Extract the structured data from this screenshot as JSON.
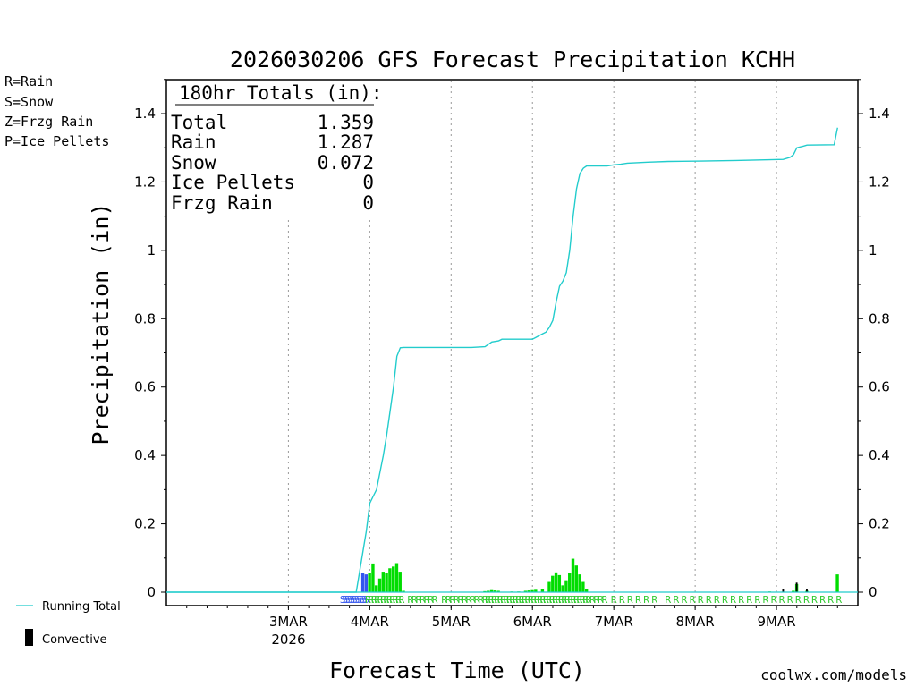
{
  "chart_data": {
    "type": "bar",
    "title": "2026030206 GFS Forecast Precipitation KCHH",
    "ylabel": "Precipitation (in)",
    "xlabel": "Forecast Time (UTC)",
    "ylim": [
      0,
      1.5
    ],
    "yticks": [
      "0",
      "0.2",
      "0.4",
      "0.6",
      "0.8",
      "1",
      "1.2",
      "1.4"
    ],
    "ytick_values": [
      0,
      0.2,
      0.4,
      0.6,
      0.8,
      1.0,
      1.2,
      1.4
    ],
    "xlim_hours": [
      -18,
      186
    ],
    "xticks": [
      {
        "label": "3MAR",
        "sub": "2026",
        "hour": 18
      },
      {
        "label": "4MAR",
        "sub": "",
        "hour": 42
      },
      {
        "label": "5MAR",
        "sub": "",
        "hour": 66
      },
      {
        "label": "6MAR",
        "sub": "",
        "hour": 90
      },
      {
        "label": "7MAR",
        "sub": "",
        "hour": 114
      },
      {
        "label": "8MAR",
        "sub": "",
        "hour": 138
      },
      {
        "label": "9MAR",
        "sub": "",
        "hour": 162
      }
    ],
    "legend": [
      {
        "label": "R=Rain",
        "color": "#33cc33"
      },
      {
        "label": "S=Snow",
        "color": "#3355ee"
      },
      {
        "label": "Z=Frzg Rain",
        "color": "#ee8833"
      },
      {
        "label": "P=Ice Pellets",
        "color": "#ee1188"
      }
    ],
    "totals": {
      "header": "180hr Totals (in):",
      "rows": [
        {
          "label": "Total",
          "value": "1.359"
        },
        {
          "label": "Rain",
          "value": "1.287"
        },
        {
          "label": "Snow",
          "value": "0.072"
        },
        {
          "label": "Ice Pellets",
          "value": "0"
        },
        {
          "label": "Frzg Rain",
          "value": "0"
        }
      ]
    },
    "running_total_label": "Running Total",
    "convective_label": "Convective",
    "credit": "coolwx.com/models",
    "colors": {
      "rain": "#00dd00",
      "snow": "#3355ee",
      "running": "#22cccc",
      "convective": "#000000",
      "rain_text": "#33cc33",
      "snow_text": "#3355ee"
    },
    "series": [
      {
        "name": "Snow",
        "bar_width_hours": 1,
        "bars": [
          [
            40,
            0.055
          ],
          [
            41,
            0.052
          ]
        ]
      },
      {
        "name": "Rain",
        "bar_width_hours": 1,
        "bars": [
          [
            42,
            0.055
          ],
          [
            43,
            0.084
          ],
          [
            44,
            0.02
          ],
          [
            45,
            0.04
          ],
          [
            46,
            0.06
          ],
          [
            47,
            0.055
          ],
          [
            48,
            0.07
          ],
          [
            49,
            0.075
          ],
          [
            50,
            0.085
          ],
          [
            51,
            0.06
          ],
          [
            52,
            0.004
          ],
          [
            76,
            0.003
          ],
          [
            77,
            0.004
          ],
          [
            78,
            0.006
          ],
          [
            79,
            0.005
          ],
          [
            80,
            0.004
          ],
          [
            84,
            0.002
          ],
          [
            86,
            0.002
          ],
          [
            88,
            0.004
          ],
          [
            89,
            0.005
          ],
          [
            90,
            0.006
          ],
          [
            91,
            0.007
          ],
          [
            93,
            0.01
          ],
          [
            95,
            0.03
          ],
          [
            96,
            0.048
          ],
          [
            97,
            0.058
          ],
          [
            98,
            0.05
          ],
          [
            99,
            0.02
          ],
          [
            100,
            0.035
          ],
          [
            101,
            0.055
          ],
          [
            102,
            0.098
          ],
          [
            103,
            0.078
          ],
          [
            104,
            0.052
          ],
          [
            105,
            0.03
          ],
          [
            106,
            0.008
          ],
          [
            120,
            0.001
          ],
          [
            138,
            0.001
          ],
          [
            160,
            0.002
          ],
          [
            167,
            0.004
          ],
          [
            168,
            0.024
          ],
          [
            171,
            0.004
          ],
          [
            180,
            0.052
          ]
        ]
      },
      {
        "name": "Convective",
        "bar_width_hours": 0.6,
        "bars": [
          [
            164,
            0.008
          ],
          [
            168,
            0.028
          ],
          [
            171,
            0.008
          ]
        ]
      },
      {
        "name": "Running Total",
        "points": [
          [
            -18,
            0
          ],
          [
            38,
            0
          ],
          [
            39,
            0.06
          ],
          [
            40,
            0.12
          ],
          [
            41,
            0.18
          ],
          [
            42,
            0.26
          ],
          [
            43,
            0.28
          ],
          [
            44,
            0.3
          ],
          [
            45,
            0.35
          ],
          [
            46,
            0.4
          ],
          [
            47,
            0.46
          ],
          [
            48,
            0.53
          ],
          [
            49,
            0.6
          ],
          [
            50,
            0.69
          ],
          [
            51,
            0.715
          ],
          [
            52,
            0.716
          ],
          [
            72,
            0.716
          ],
          [
            76,
            0.718
          ],
          [
            78,
            0.732
          ],
          [
            80,
            0.735
          ],
          [
            81,
            0.74
          ],
          [
            90,
            0.74
          ],
          [
            91,
            0.745
          ],
          [
            93,
            0.756
          ],
          [
            94,
            0.761
          ],
          [
            95,
            0.775
          ],
          [
            96,
            0.795
          ],
          [
            97,
            0.85
          ],
          [
            98,
            0.895
          ],
          [
            99,
            0.91
          ],
          [
            100,
            0.935
          ],
          [
            101,
            1.0
          ],
          [
            102,
            1.1
          ],
          [
            103,
            1.18
          ],
          [
            104,
            1.225
          ],
          [
            105,
            1.24
          ],
          [
            106,
            1.247
          ],
          [
            112,
            1.247
          ],
          [
            114,
            1.25
          ],
          [
            116,
            1.252
          ],
          [
            118,
            1.255
          ],
          [
            124,
            1.258
          ],
          [
            130,
            1.26
          ],
          [
            140,
            1.261
          ],
          [
            150,
            1.263
          ],
          [
            160,
            1.265
          ],
          [
            164,
            1.266
          ],
          [
            166,
            1.272
          ],
          [
            167,
            1.28
          ],
          [
            168,
            1.3
          ],
          [
            170,
            1.305
          ],
          [
            171,
            1.308
          ],
          [
            179,
            1.309
          ],
          [
            180,
            1.359
          ]
        ]
      }
    ],
    "ptype_markers": {
      "snow": {
        "char": "S",
        "from": 34,
        "to": 41,
        "step": 0.7
      },
      "rain_dense": [
        [
          41.5,
          52,
          0.9
        ],
        [
          76,
          106,
          0.9
        ]
      ],
      "rain_sparse": [
        [
          54,
          62,
          1.2
        ],
        [
          64,
          75,
          1.2
        ],
        [
          106.5,
          112,
          1.2
        ],
        [
          114,
          126,
          2.4
        ],
        [
          130,
          182,
          2.4
        ]
      ]
    }
  }
}
